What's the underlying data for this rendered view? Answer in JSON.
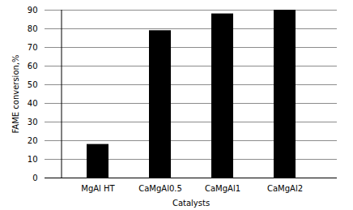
{
  "chart_data": {
    "type": "bar",
    "categories": [
      "MgAl HT",
      "CaMgAl0.5",
      "CaMgAl1",
      "CaMgAl2"
    ],
    "values": [
      18,
      79,
      88,
      90
    ],
    "color": "#000000",
    "xlabel": "Catalysts",
    "ylabel": "FAME conversion,%",
    "ylim": [
      0,
      90
    ],
    "yticks": [
      0,
      10,
      20,
      30,
      40,
      50,
      60,
      70,
      80,
      90
    ],
    "grid": true
  }
}
